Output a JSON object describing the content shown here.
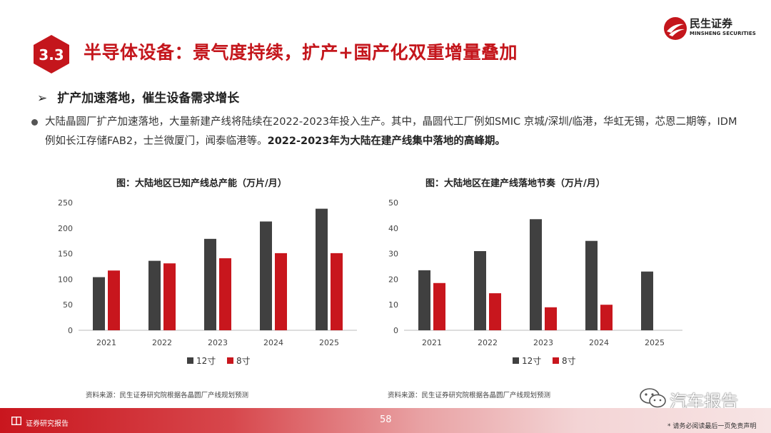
{
  "header": {
    "section_num": "3.3",
    "title": "半导体设备：景气度持续，扩产+国产化双重增量叠加",
    "logo_cn": "民生证券",
    "logo_en": "MINSHENG SECURITIES",
    "brand_color": "#c4161c"
  },
  "subheading": {
    "arrow": "➢",
    "text": "扩产加速落地，催生设备需求增长"
  },
  "paragraph": {
    "normal": "大陆晶圆厂扩产加速落地，大量新建产线将陆续在2022-2023年投入生产。其中，晶圆代工厂例如SMIC 京城/深圳/临港，华虹无锡，芯恩二期等，IDM例如长江存储FAB2，士兰微厦门，闻泰临港等。",
    "bold": "2022-2023年为大陆在建产线集中落地的高峰期。"
  },
  "chart_data": [
    {
      "type": "bar",
      "title": "图：大陆地区已知产线总产能（万片/月）",
      "categories": [
        "2021",
        "2022",
        "2023",
        "2024",
        "2025"
      ],
      "series": [
        {
          "name": "12寸",
          "color": "#404040",
          "values": [
            104,
            136,
            179,
            213,
            238
          ]
        },
        {
          "name": "8寸",
          "color": "#c8161d",
          "values": [
            117,
            131,
            141,
            151,
            151
          ]
        }
      ],
      "ylim": [
        0,
        250
      ],
      "yticks": [
        0,
        50,
        100,
        150,
        200,
        250
      ],
      "source": "资料来源：民生证券研究院根据各晶圆厂产线规划预测"
    },
    {
      "type": "bar",
      "title": "图：大陆地区在建产线落地节奏（万片/月）",
      "categories": [
        "2021",
        "2022",
        "2023",
        "2024",
        "2025"
      ],
      "series": [
        {
          "name": "12寸",
          "color": "#404040",
          "values": [
            23.5,
            31,
            43.5,
            35,
            23
          ]
        },
        {
          "name": "8寸",
          "color": "#c8161d",
          "values": [
            18.5,
            14.5,
            9,
            10,
            0
          ]
        }
      ],
      "ylim": [
        0,
        50
      ],
      "yticks": [
        0,
        10,
        20,
        30,
        40,
        50
      ],
      "source": "资料来源：民生证券研究院根据各晶圆厂产线规划预测"
    }
  ],
  "footer": {
    "label": "证券研究报告",
    "page": "58",
    "disclaimer": "* 请务必阅读最后一页免责声明"
  },
  "watermark": {
    "text": "汽车报告"
  }
}
